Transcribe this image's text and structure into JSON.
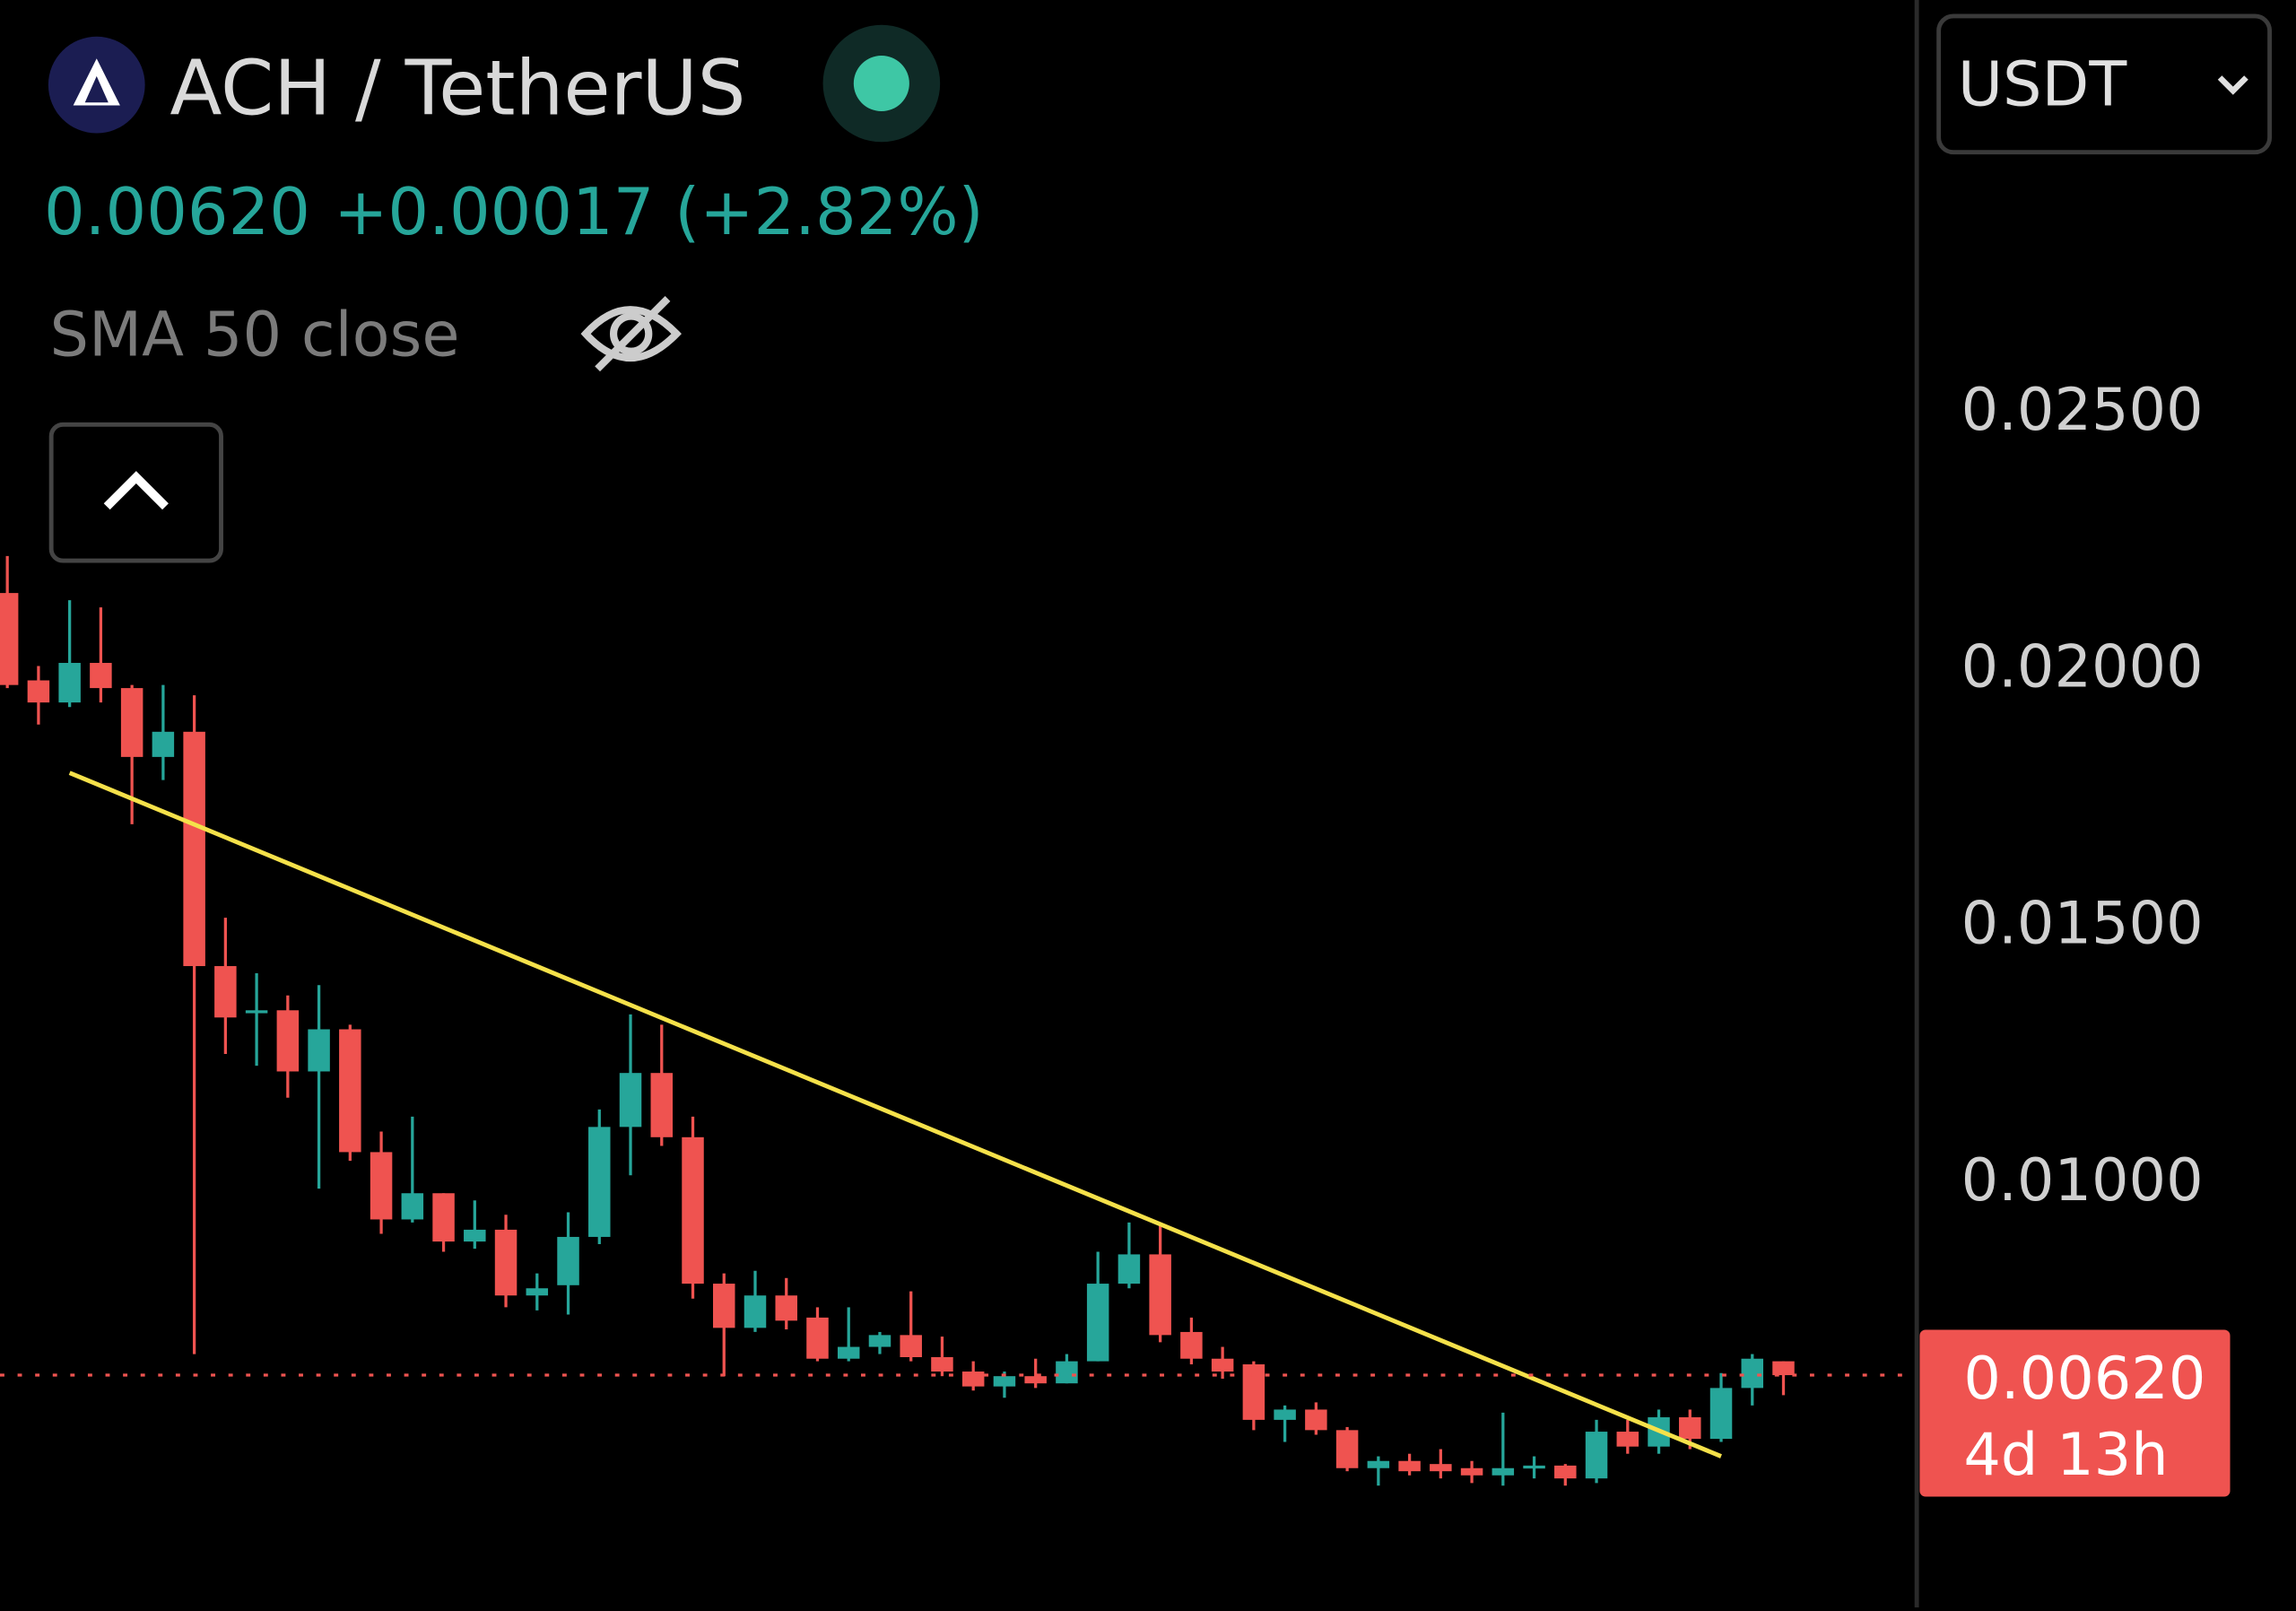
{
  "header": {
    "symbol": "ACH / TetherUS",
    "price": "0.00620",
    "change": "+0.00017 (+2.82%)",
    "indicator": "SMA 50 close",
    "currency": "USDT"
  },
  "chart_data": {
    "type": "candlestick",
    "up_color": "#26a69a",
    "down_color": "#ef5350",
    "open": [
      0.02142,
      0.01972,
      0.01929,
      0.02006,
      0.01957,
      0.01823,
      0.01872,
      0.01416,
      0.01325,
      0.0133,
      0.01211,
      0.01293,
      0.01054,
      0.00923,
      0.00974,
      0.0088,
      0.00903,
      0.00775,
      0.00795,
      0.00889,
      0.01103,
      0.01208,
      0.01083,
      0.00798,
      0.00712,
      0.00775,
      0.00732,
      0.00652,
      0.00675,
      0.00698,
      0.00655,
      0.00627,
      0.00598,
      0.00618,
      0.00604,
      0.00647,
      0.00798,
      0.00855,
      0.00704,
      0.00652,
      0.00641,
      0.00533,
      0.00553,
      0.00513,
      0.00439,
      0.00453,
      0.00447,
      0.00439,
      0.00425,
      0.00439,
      0.00444,
      0.00419,
      0.0051,
      0.00481,
      0.00538,
      0.00496,
      0.00595,
      0.00647
    ],
    "high": [
      0.02214,
      0.02,
      0.02128,
      0.02114,
      0.01963,
      0.01963,
      0.01943,
      0.0151,
      0.01402,
      0.01359,
      0.01379,
      0.01302,
      0.01094,
      0.01123,
      0.00974,
      0.0096,
      0.00932,
      0.00818,
      0.00937,
      0.01137,
      0.01322,
      0.01302,
      0.01123,
      0.00818,
      0.00823,
      0.00809,
      0.00752,
      0.00752,
      0.00704,
      0.00783,
      0.00695,
      0.00647,
      0.00627,
      0.00652,
      0.00661,
      0.0086,
      0.00917,
      0.00917,
      0.00732,
      0.00675,
      0.00647,
      0.00561,
      0.00567,
      0.00519,
      0.00462,
      0.00467,
      0.00476,
      0.00453,
      0.00547,
      0.00462,
      0.00447,
      0.00533,
      0.00533,
      0.00553,
      0.00553,
      0.00624,
      0.00661,
      0.00647
    ],
    "low": [
      0.01957,
      0.01886,
      0.0192,
      0.01929,
      0.01692,
      0.01778,
      0.00661,
      0.01245,
      0.01222,
      0.0116,
      0.00983,
      0.01037,
      0.00895,
      0.00917,
      0.0086,
      0.00866,
      0.00752,
      0.00746,
      0.00738,
      0.00875,
      0.01009,
      0.01066,
      0.00769,
      0.00618,
      0.00704,
      0.00709,
      0.00647,
      0.00647,
      0.00661,
      0.00647,
      0.00618,
      0.0059,
      0.00576,
      0.00595,
      0.00604,
      0.00647,
      0.00789,
      0.00684,
      0.00641,
      0.00613,
      0.00513,
      0.0049,
      0.00504,
      0.00433,
      0.00405,
      0.00425,
      0.00419,
      0.0041,
      0.00405,
      0.00419,
      0.00405,
      0.0041,
      0.00467,
      0.00467,
      0.00476,
      0.0049,
      0.00561,
      0.00581
    ],
    "close": [
      0.01963,
      0.01929,
      0.02006,
      0.01957,
      0.01823,
      0.01872,
      0.01416,
      0.01316,
      0.0133,
      0.01211,
      0.01293,
      0.01054,
      0.00923,
      0.00974,
      0.0088,
      0.00903,
      0.00775,
      0.00789,
      0.00889,
      0.01103,
      0.01208,
      0.01083,
      0.00798,
      0.00712,
      0.00775,
      0.00726,
      0.00652,
      0.00675,
      0.00698,
      0.00655,
      0.00627,
      0.00598,
      0.00618,
      0.00604,
      0.00647,
      0.00798,
      0.00855,
      0.00698,
      0.00652,
      0.00627,
      0.00533,
      0.00553,
      0.00513,
      0.00439,
      0.00453,
      0.00433,
      0.00433,
      0.00425,
      0.00439,
      0.00444,
      0.00419,
      0.0051,
      0.00481,
      0.00538,
      0.00496,
      0.00595,
      0.00652,
      0.0062
    ],
    "ylim": [
      0.00168,
      0.03296
    ],
    "yticks": [
      {
        "value": 0.025,
        "label": "0.02500"
      },
      {
        "value": 0.02,
        "label": "0.02000"
      },
      {
        "value": 0.015,
        "label": "0.01500"
      },
      {
        "value": 0.01,
        "label": "0.01000"
      }
    ],
    "trendline": {
      "start_index": 2,
      "end_index": 55,
      "values": [
        0.01792,
        0.00462
      ],
      "color": "#f5e14a"
    },
    "last_price": {
      "value": 0.0062,
      "label": "0.00620"
    },
    "countdown": "4d 13h"
  }
}
